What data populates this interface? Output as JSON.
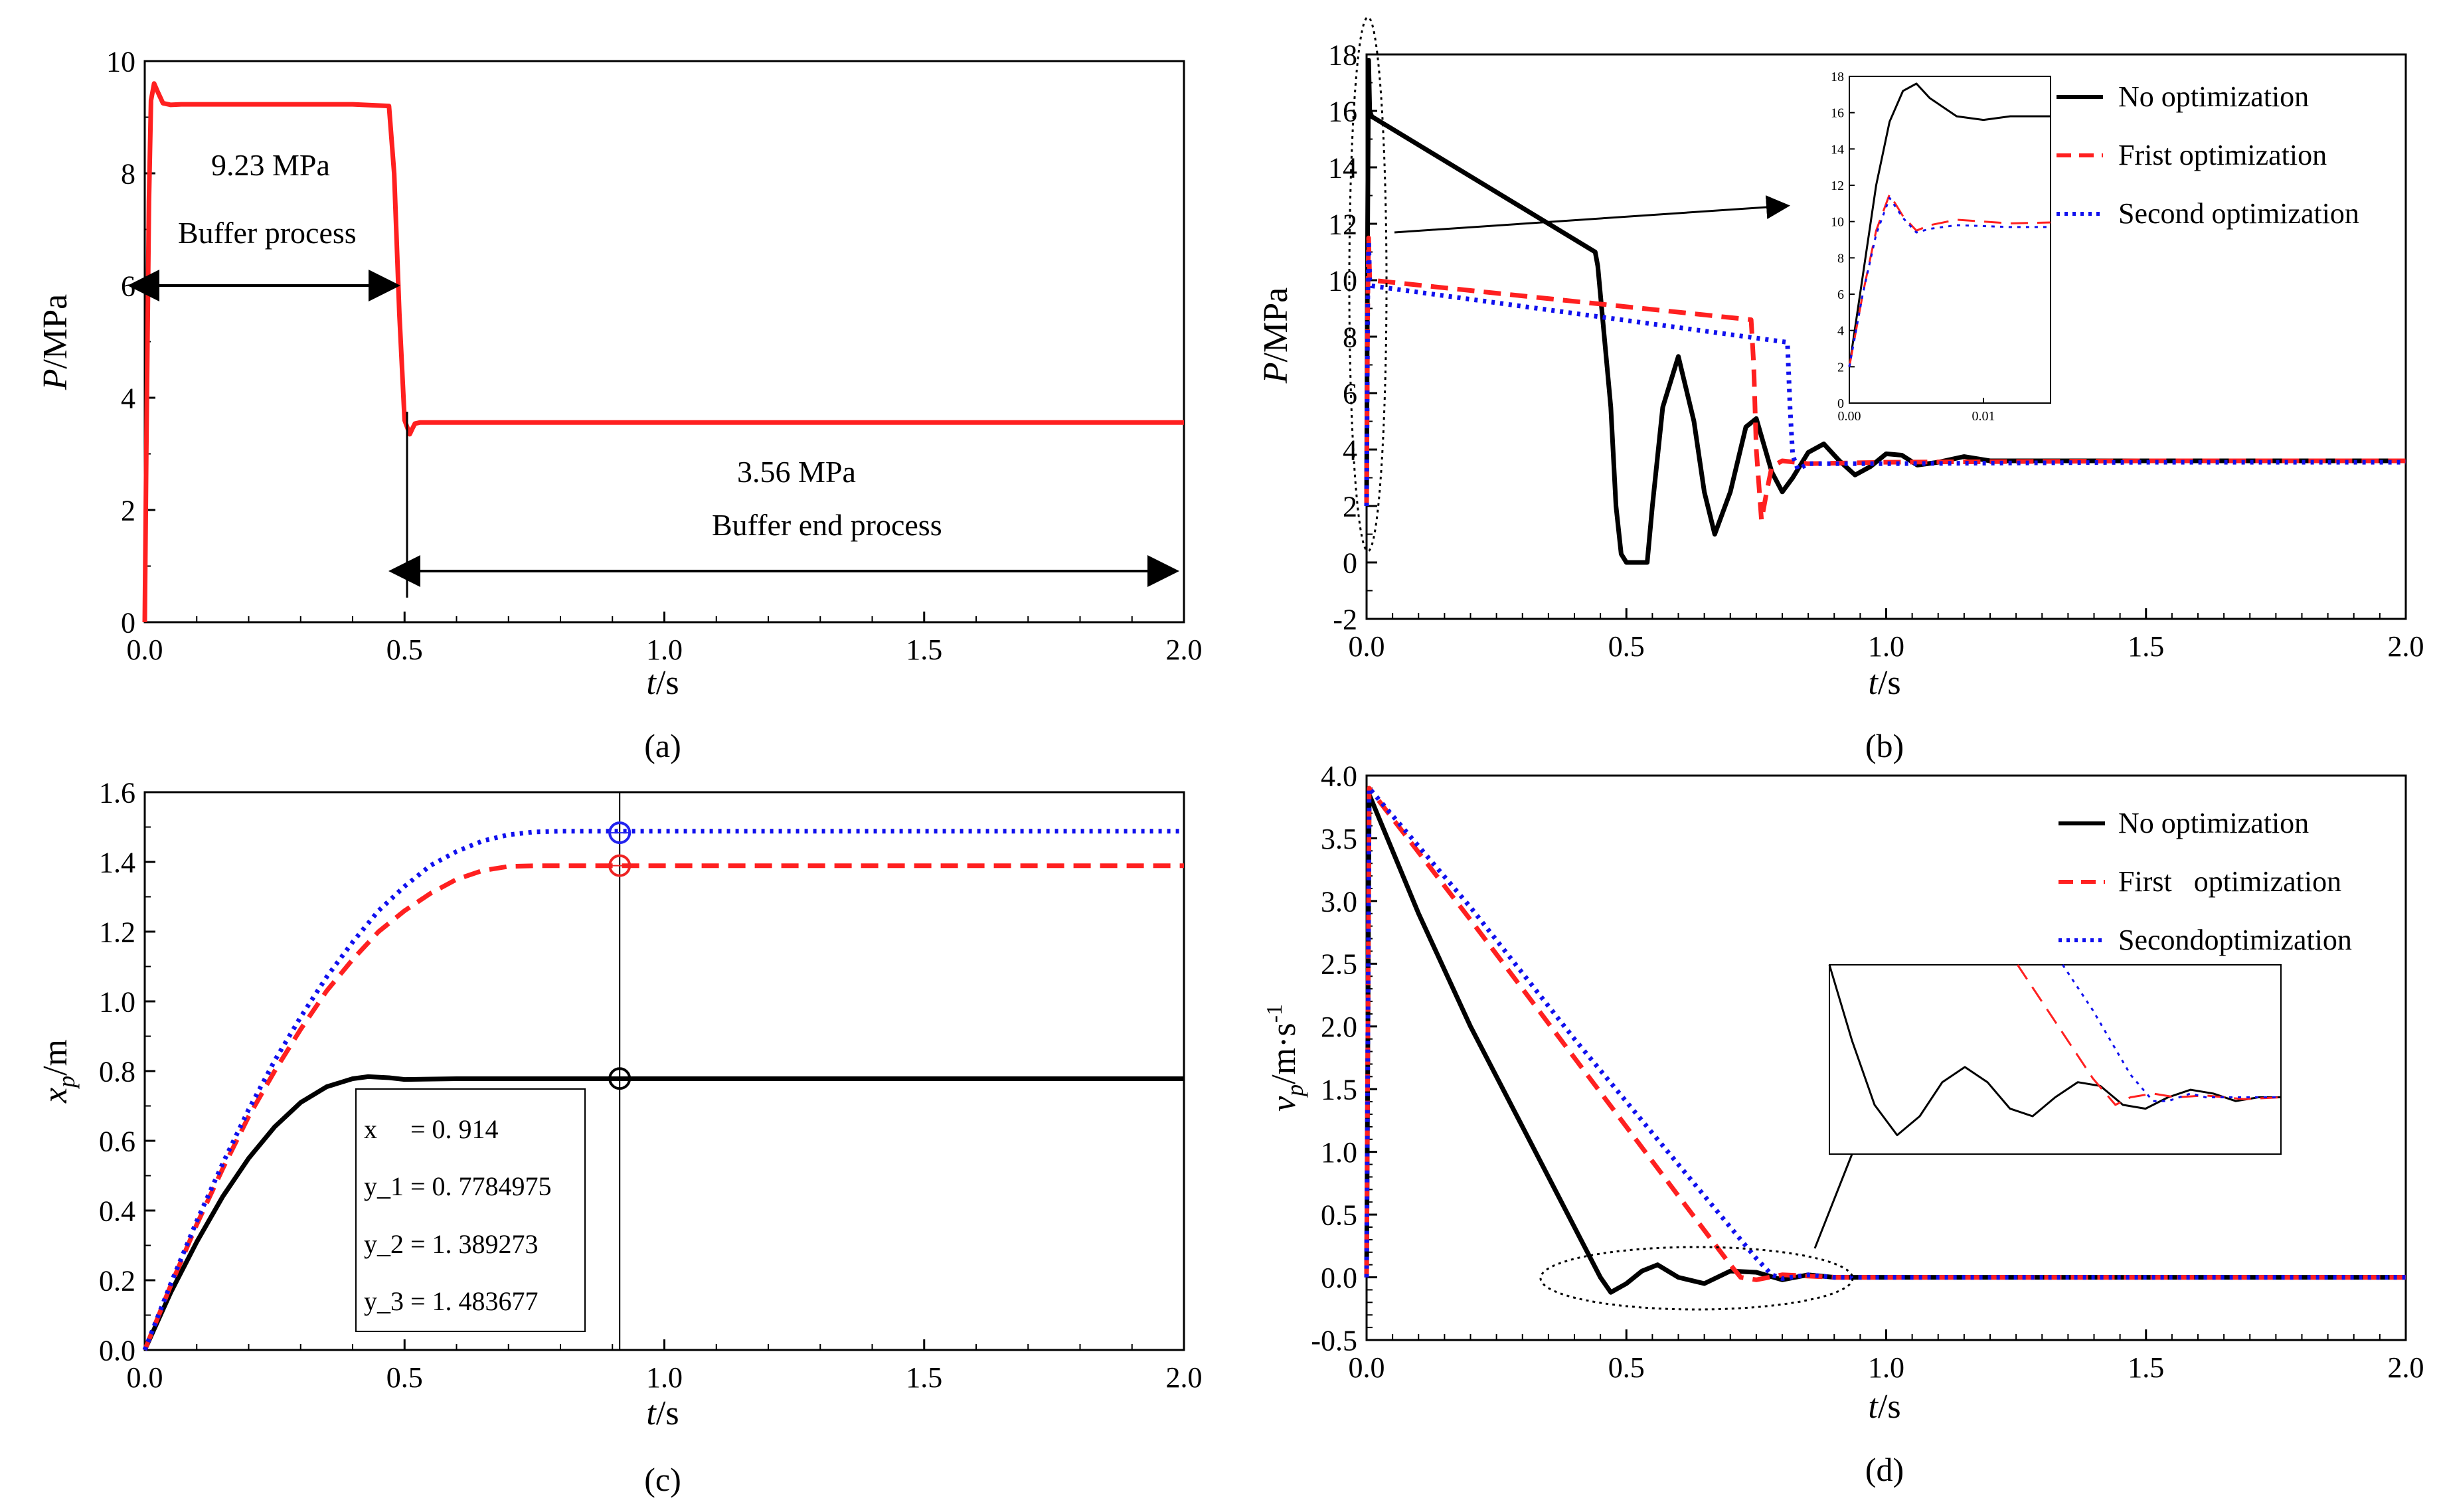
{
  "figure": {
    "panels": [
      "(a)",
      "(b)",
      "(c)",
      "(d)"
    ]
  },
  "chart_data": [
    {
      "id": "a",
      "type": "line",
      "panel_label": "(a)",
      "xlabel": "t/s",
      "ylabel": "P/MPa",
      "xlim": [
        0,
        2.0
      ],
      "ylim": [
        0,
        10
      ],
      "xticks": [
        "0.0",
        "0.5",
        "1.0",
        "1.5",
        "2.0"
      ],
      "yticks": [
        "0",
        "2",
        "4",
        "6",
        "8",
        "10"
      ],
      "series": [
        {
          "name": "P",
          "color": "#ff2020",
          "style": "solid",
          "x": [
            0,
            0.003,
            0.008,
            0.012,
            0.018,
            0.025,
            0.035,
            0.05,
            0.07,
            0.1,
            0.2,
            0.3,
            0.4,
            0.47,
            0.48,
            0.49,
            0.5,
            0.51,
            0.515,
            0.52,
            0.53,
            0.55,
            0.6,
            0.8,
            1.0,
            1.5,
            2.0
          ],
          "y": [
            0,
            3.0,
            7.5,
            9.3,
            9.6,
            9.45,
            9.25,
            9.22,
            9.23,
            9.23,
            9.23,
            9.23,
            9.23,
            9.2,
            8.0,
            5.5,
            3.6,
            3.35,
            3.45,
            3.54,
            3.56,
            3.56,
            3.56,
            3.56,
            3.56,
            3.56,
            3.56
          ]
        }
      ],
      "annotations": [
        {
          "text": "9.23 MPa",
          "x": 0.2,
          "y": 8.2
        },
        {
          "text": "Buffer process",
          "x": 0.25,
          "y": 6.9
        },
        {
          "text": "3.56 MPa",
          "x": 1.25,
          "y": 2.6
        },
        {
          "text": "Buffer end process",
          "x": 1.32,
          "y": 1.7
        }
      ]
    },
    {
      "id": "b",
      "type": "line",
      "panel_label": "(b)",
      "xlabel": "t/s",
      "ylabel": "P/MPa",
      "xlim": [
        0,
        2.0
      ],
      "ylim": [
        -2,
        18
      ],
      "xticks": [
        "0.0",
        "0.5",
        "1.0",
        "1.5",
        "2.0"
      ],
      "yticks": [
        "-2",
        "0",
        "2",
        "4",
        "6",
        "8",
        "10",
        "12",
        "14",
        "16",
        "18"
      ],
      "series": [
        {
          "name": "No optimization",
          "color": "#000000",
          "style": "solid",
          "x": [
            0,
            0.002,
            0.004,
            0.006,
            0.01,
            0.44,
            0.445,
            0.47,
            0.48,
            0.49,
            0.5,
            0.52,
            0.54,
            0.55,
            0.57,
            0.6,
            0.63,
            0.65,
            0.67,
            0.7,
            0.73,
            0.75,
            0.78,
            0.8,
            0.82,
            0.85,
            0.88,
            0.91,
            0.94,
            0.97,
            1.0,
            1.03,
            1.06,
            1.1,
            1.15,
            1.2,
            1.3,
            1.5,
            2.0
          ],
          "y": [
            2,
            12,
            17.8,
            16,
            15.8,
            11.0,
            10.5,
            5.5,
            2.0,
            0.3,
            0.0,
            0.0,
            0.0,
            2.0,
            5.5,
            7.3,
            5.0,
            2.5,
            1.0,
            2.5,
            4.8,
            5.1,
            3.2,
            2.5,
            3.0,
            3.9,
            4.2,
            3.6,
            3.1,
            3.4,
            3.85,
            3.8,
            3.45,
            3.55,
            3.75,
            3.6,
            3.6,
            3.6,
            3.6
          ]
        },
        {
          "name": "Frist optimization",
          "color": "#ff2020",
          "style": "dashed",
          "x": [
            0,
            0.002,
            0.004,
            0.006,
            0.01,
            0.74,
            0.745,
            0.75,
            0.76,
            0.77,
            0.78,
            0.8,
            0.85,
            1.0,
            1.5,
            2.0
          ],
          "y": [
            2,
            9,
            11.5,
            10,
            10.0,
            8.6,
            7.0,
            4.0,
            1.5,
            2.5,
            3.4,
            3.6,
            3.5,
            3.55,
            3.6,
            3.6
          ],
          "legend_label": "Frist optimization"
        },
        {
          "name": "Second optimization",
          "color": "#1010ee",
          "style": "dotted",
          "x": [
            0,
            0.002,
            0.004,
            0.006,
            0.01,
            0.81,
            0.815,
            0.82,
            0.83,
            0.85,
            1.0,
            1.5,
            2.0
          ],
          "y": [
            2,
            9,
            11.4,
            10,
            9.8,
            7.8,
            5.5,
            3.8,
            3.3,
            3.5,
            3.5,
            3.55,
            3.55
          ]
        }
      ],
      "inset": {
        "xlim": [
          0,
          0.015
        ],
        "ylim": [
          0,
          18
        ],
        "xticks": [
          "0.00",
          "0.01"
        ],
        "yticks": [
          "0",
          "2",
          "4",
          "6",
          "8",
          "10",
          "12",
          "14",
          "16",
          "18"
        ],
        "series": [
          {
            "name": "No optimization",
            "x": [
              0,
              0.001,
              0.002,
              0.003,
              0.004,
              0.005,
              0.006,
              0.008,
              0.01,
              0.012,
              0.015
            ],
            "y": [
              2,
              7,
              12,
              15.5,
              17.2,
              17.6,
              16.8,
              15.8,
              15.6,
              15.8,
              15.8
            ]
          },
          {
            "name": "Frist optimization",
            "x": [
              0,
              0.001,
              0.002,
              0.003,
              0.004,
              0.005,
              0.006,
              0.008,
              0.01,
              0.012,
              0.015
            ],
            "y": [
              2,
              6,
              9.5,
              11.5,
              10.3,
              9.5,
              9.8,
              10.1,
              10.0,
              9.9,
              9.95
            ]
          },
          {
            "name": "Second optimization",
            "x": [
              0,
              0.001,
              0.002,
              0.003,
              0.004,
              0.005,
              0.006,
              0.008,
              0.01,
              0.012,
              0.015
            ],
            "y": [
              2,
              6,
              9.3,
              11.3,
              10.2,
              9.4,
              9.6,
              9.8,
              9.75,
              9.7,
              9.7
            ]
          }
        ]
      }
    },
    {
      "id": "c",
      "type": "line",
      "panel_label": "(c)",
      "xlabel": "t/s",
      "ylabel": "xp/m",
      "xlim": [
        0,
        2.0
      ],
      "ylim": [
        0,
        1.6
      ],
      "xticks": [
        "0.0",
        "0.5",
        "1.0",
        "1.5",
        "2.0"
      ],
      "yticks": [
        "0.0",
        "0.2",
        "0.4",
        "0.6",
        "0.8",
        "1.0",
        "1.2",
        "1.4",
        "1.6"
      ],
      "series": [
        {
          "name": "No optimization",
          "color": "#000000",
          "style": "solid",
          "x": [
            0,
            0.05,
            0.1,
            0.15,
            0.2,
            0.25,
            0.3,
            0.35,
            0.4,
            0.43,
            0.47,
            0.5,
            0.6,
            0.8,
            1.0,
            1.5,
            2.0
          ],
          "y": [
            0,
            0.165,
            0.31,
            0.44,
            0.55,
            0.64,
            0.71,
            0.755,
            0.778,
            0.784,
            0.781,
            0.776,
            0.778,
            0.778,
            0.778,
            0.778,
            0.778
          ]
        },
        {
          "name": "First optimization",
          "color": "#ff2020",
          "style": "dashed",
          "x": [
            0,
            0.05,
            0.1,
            0.15,
            0.2,
            0.25,
            0.3,
            0.35,
            0.4,
            0.45,
            0.5,
            0.55,
            0.6,
            0.65,
            0.7,
            0.75,
            0.8,
            1.0,
            1.5,
            2.0
          ],
          "y": [
            0,
            0.185,
            0.36,
            0.52,
            0.67,
            0.8,
            0.92,
            1.03,
            1.12,
            1.2,
            1.26,
            1.31,
            1.35,
            1.375,
            1.387,
            1.389,
            1.389,
            1.389,
            1.389,
            1.389
          ]
        },
        {
          "name": "Second optimization",
          "color": "#1010ee",
          "style": "dotted",
          "x": [
            0,
            0.05,
            0.1,
            0.15,
            0.2,
            0.25,
            0.3,
            0.35,
            0.4,
            0.45,
            0.5,
            0.55,
            0.6,
            0.65,
            0.7,
            0.75,
            0.8,
            1.0,
            1.5,
            2.0
          ],
          "y": [
            0,
            0.19,
            0.37,
            0.535,
            0.69,
            0.83,
            0.955,
            1.07,
            1.17,
            1.26,
            1.33,
            1.39,
            1.43,
            1.46,
            1.478,
            1.486,
            1.488,
            1.488,
            1.488,
            1.488
          ]
        }
      ],
      "cursor": {
        "x": 0.914,
        "markers": [
          0.7784975,
          1.389273,
          1.483677
        ],
        "readout": [
          {
            "label": "x     = 0. 914",
            "color": "#333333"
          },
          {
            "label": "y_1 = 0. 7784975",
            "color": "#333333"
          },
          {
            "label": "y_2 = 1. 389273",
            "color": "#ee2222"
          },
          {
            "label": "y_3 = 1. 483677",
            "color": "#2222ee"
          }
        ]
      }
    },
    {
      "id": "d",
      "type": "line",
      "panel_label": "(d)",
      "xlabel": "t/s",
      "ylabel": "vp/m·s-1",
      "xlim": [
        0,
        2.0
      ],
      "ylim": [
        -0.5,
        4.0
      ],
      "xticks": [
        "0.0",
        "0.5",
        "1.0",
        "1.5",
        "2.0"
      ],
      "yticks": [
        "-0.5",
        "0.0",
        "0.5",
        "1.0",
        "1.5",
        "2.0",
        "2.5",
        "3.0",
        "3.5",
        "4.0"
      ],
      "series": [
        {
          "name": "No optimization",
          "color": "#000000",
          "style": "solid",
          "x": [
            0,
            0.005,
            0.1,
            0.2,
            0.3,
            0.4,
            0.45,
            0.47,
            0.5,
            0.53,
            0.56,
            0.6,
            0.65,
            0.7,
            0.75,
            0.8,
            0.85,
            0.9,
            1.0,
            1.5,
            2.0
          ],
          "y": [
            0,
            3.85,
            2.9,
            2.0,
            1.2,
            0.4,
            0.0,
            -0.12,
            -0.05,
            0.05,
            0.1,
            0.0,
            -0.05,
            0.05,
            0.04,
            -0.02,
            0.02,
            0.0,
            0.0,
            0.0,
            0.0
          ]
        },
        {
          "name": "First   optimization",
          "color": "#ff2020",
          "style": "dashed",
          "x": [
            0,
            0.005,
            0.2,
            0.4,
            0.6,
            0.7,
            0.72,
            0.75,
            0.8,
            0.85,
            0.9,
            1.0,
            1.5,
            2.0
          ],
          "y": [
            0,
            3.9,
            2.85,
            1.75,
            0.65,
            0.1,
            0.0,
            -0.02,
            0.02,
            0.01,
            0.0,
            0.0,
            0.0,
            0.0
          ]
        },
        {
          "name": "Secondoptimization",
          "color": "#1010ee",
          "style": "dotted",
          "x": [
            0,
            0.005,
            0.2,
            0.4,
            0.6,
            0.75,
            0.78,
            0.8,
            0.85,
            0.9,
            1.0,
            1.5,
            2.0
          ],
          "y": [
            0,
            3.9,
            2.95,
            1.9,
            0.9,
            0.15,
            0.02,
            -0.01,
            0.02,
            0.0,
            0.0,
            0.0,
            0.0
          ]
        }
      ],
      "inset": {
        "xlim": [
          0.4,
          1.0
        ],
        "ylim": [
          -0.15,
          0.35
        ],
        "series": [
          {
            "name": "No optimization",
            "x": [
              0.4,
              0.43,
              0.46,
              0.49,
              0.52,
              0.55,
              0.58,
              0.61,
              0.64,
              0.67,
              0.7,
              0.73,
              0.76,
              0.79,
              0.82,
              0.85,
              0.88,
              0.91,
              0.94,
              0.97,
              1.0
            ],
            "y": [
              0.35,
              0.15,
              -0.02,
              -0.1,
              -0.05,
              0.04,
              0.08,
              0.04,
              -0.03,
              -0.05,
              0.0,
              0.04,
              0.03,
              -0.02,
              -0.03,
              0.0,
              0.02,
              0.01,
              -0.01,
              0.0,
              0.0
            ]
          },
          {
            "name": "First   optimization",
            "x": [
              0.65,
              0.7,
              0.75,
              0.78,
              0.8,
              0.83,
              0.86,
              0.9,
              0.95,
              1.0
            ],
            "y": [
              0.35,
              0.2,
              0.05,
              -0.02,
              0.0,
              0.01,
              0.0,
              0.005,
              -0.005,
              0.0
            ]
          },
          {
            "name": "Secondoptimization",
            "x": [
              0.71,
              0.75,
              0.8,
              0.83,
              0.85,
              0.88,
              0.9,
              0.95,
              1.0
            ],
            "y": [
              0.35,
              0.23,
              0.06,
              -0.01,
              -0.01,
              0.01,
              0.0,
              0.0,
              0.0
            ]
          }
        ]
      }
    }
  ]
}
